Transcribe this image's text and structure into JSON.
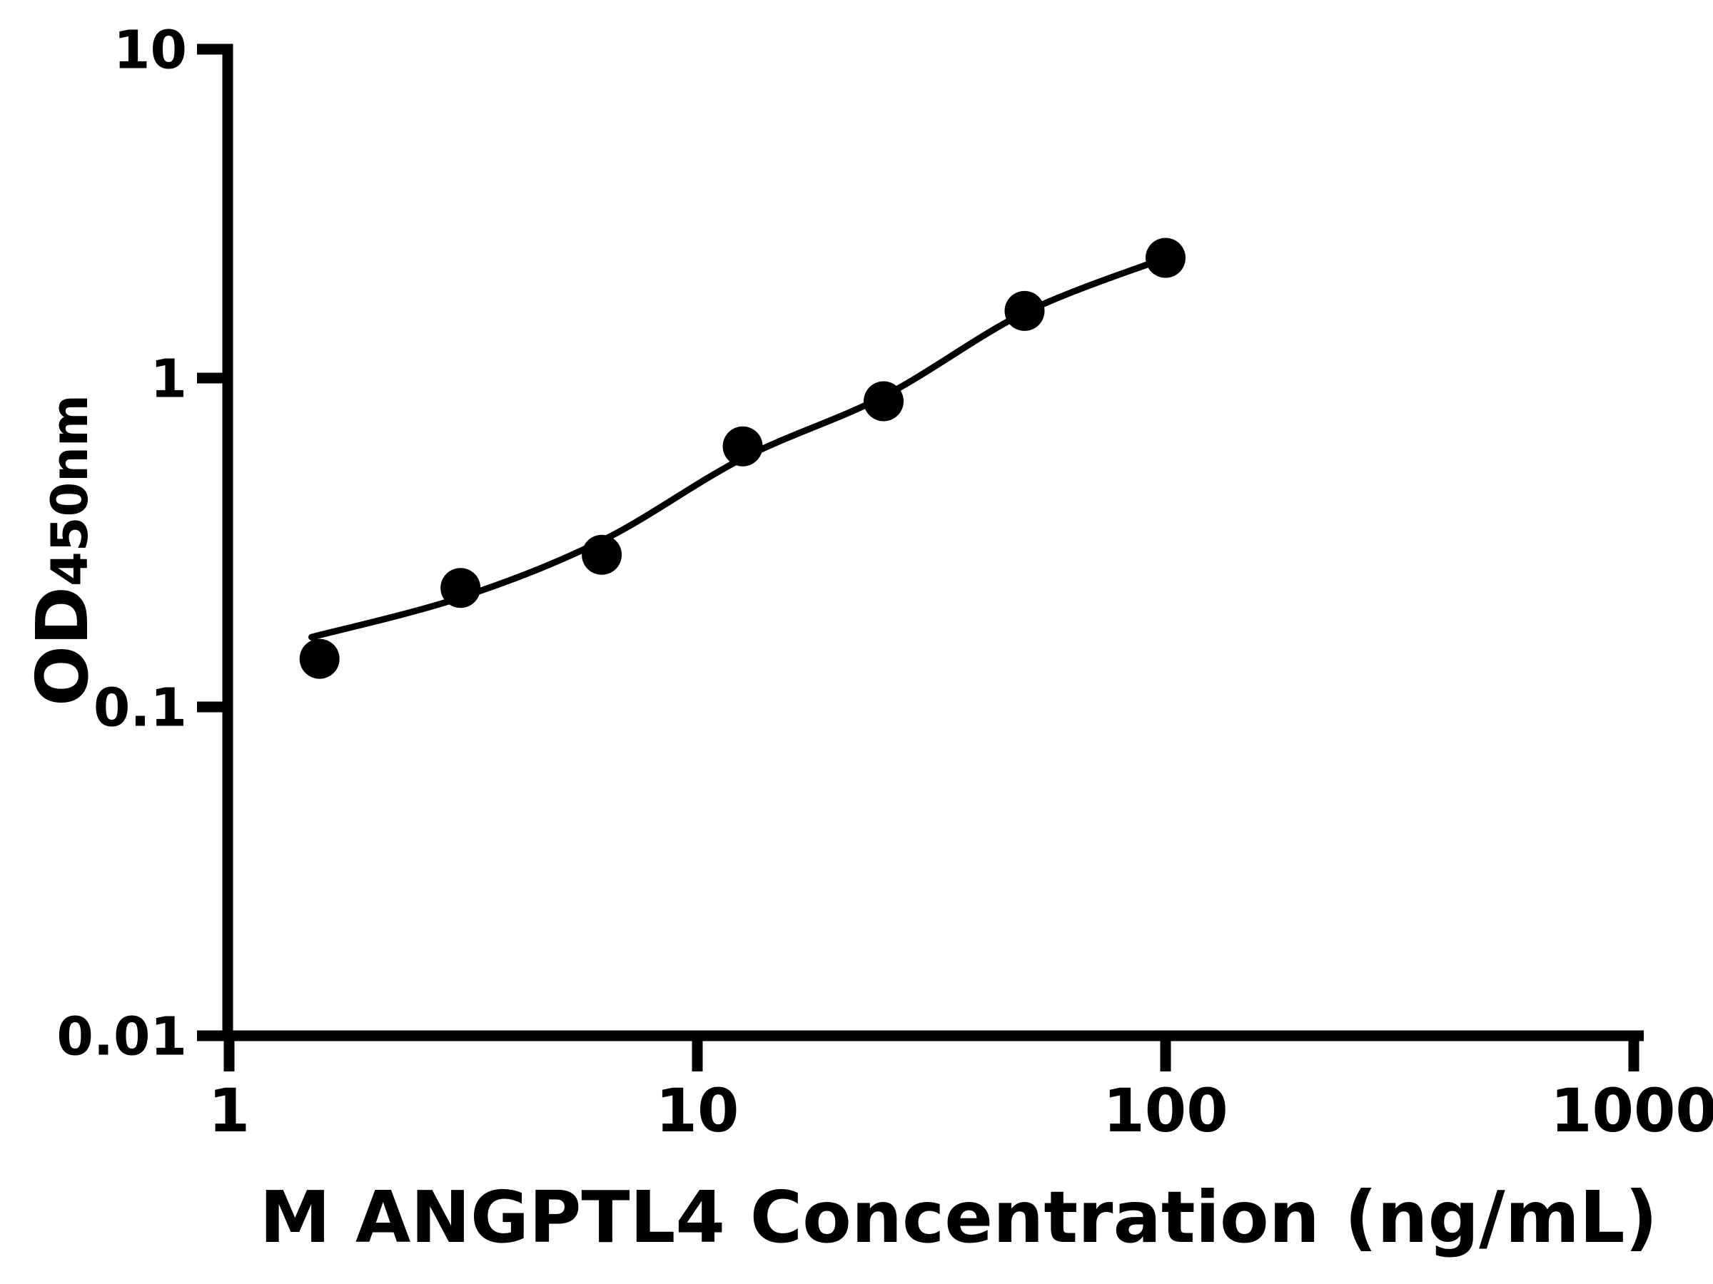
{
  "colors": {
    "foreground": "#000000",
    "background": "#ffffff"
  },
  "chart_data": {
    "type": "scatter",
    "title": "",
    "xlabel": "M ANGPTL4 Concentration (ng/mL)",
    "ylabel": "OD450nm",
    "ylabel_main": "OD",
    "ylabel_sub": "450nm",
    "x_scale": "log",
    "y_scale": "log",
    "xlim": [
      1,
      1000
    ],
    "ylim": [
      0.01,
      10
    ],
    "x_ticks": [
      1,
      10,
      100,
      1000
    ],
    "x_tick_labels": [
      "1",
      "10",
      "100",
      "1000"
    ],
    "y_ticks": [
      10,
      1,
      0.1,
      0.01
    ],
    "y_tick_labels": [
      "10",
      "1",
      "0.1",
      "0.01"
    ],
    "grid": false,
    "legend": "none",
    "series": [
      {
        "name": "standard-points",
        "type": "scatter",
        "marker": "filled-circle",
        "color": "#000000",
        "x": [
          1.56,
          3.12,
          6.25,
          12.5,
          25,
          50,
          100
        ],
        "y": [
          0.14,
          0.23,
          0.29,
          0.62,
          0.85,
          1.6,
          2.32
        ]
      },
      {
        "name": "fit-curve",
        "type": "line",
        "color": "#000000",
        "x": [
          1.5,
          3.12,
          6.25,
          12.5,
          25,
          50,
          100
        ],
        "y": [
          0.163,
          0.215,
          0.32,
          0.57,
          0.88,
          1.58,
          2.32
        ]
      }
    ]
  }
}
